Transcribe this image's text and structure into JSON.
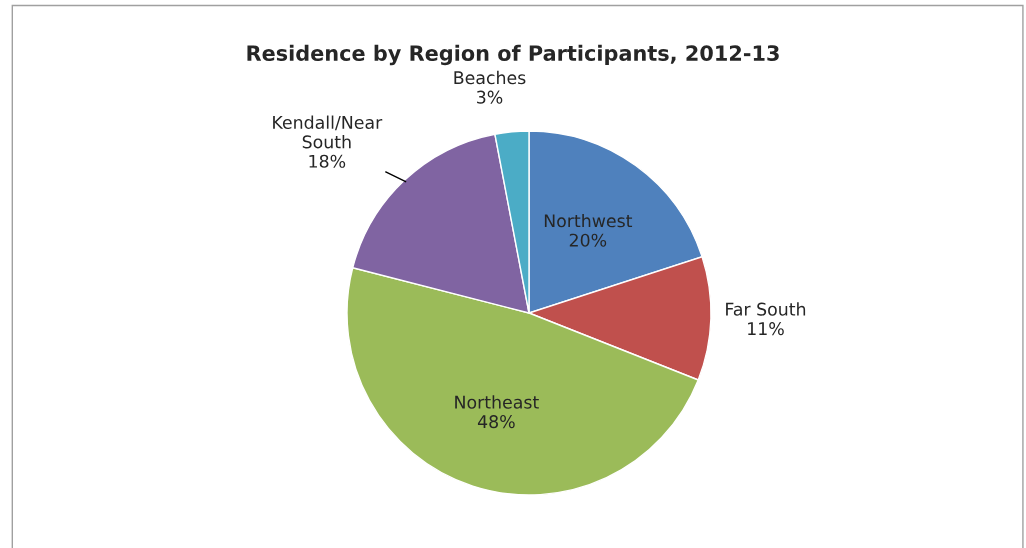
{
  "chart_data": {
    "type": "pie",
    "title": "Residence by Region of Participants, 2012-13",
    "categories": [
      "Northwest",
      "Far South",
      "Northeast",
      "Kendall/Near South",
      "Beaches"
    ],
    "values": [
      20,
      11,
      48,
      18,
      3
    ],
    "value_labels": [
      "20%",
      "11%",
      "48%",
      "18%",
      "3%"
    ],
    "colors": [
      "#4f81bd",
      "#c0504d",
      "#9bbb59",
      "#8064a2",
      "#4bacc6"
    ],
    "legend": false
  }
}
